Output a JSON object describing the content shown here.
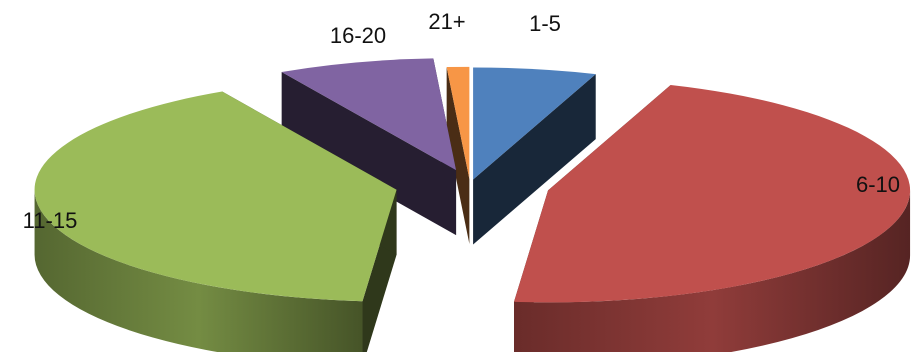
{
  "chart_data": {
    "type": "pie",
    "style": "3d-exploded",
    "categories": [
      "1-5",
      "6-10",
      "11-15",
      "16-20",
      "21+"
    ],
    "values": [
      5.5,
      46,
      40.5,
      7,
      1
    ],
    "colors": [
      "#4f81bd",
      "#c0504d",
      "#9bbb59",
      "#8064a2",
      "#f79646"
    ],
    "legend": "none"
  }
}
